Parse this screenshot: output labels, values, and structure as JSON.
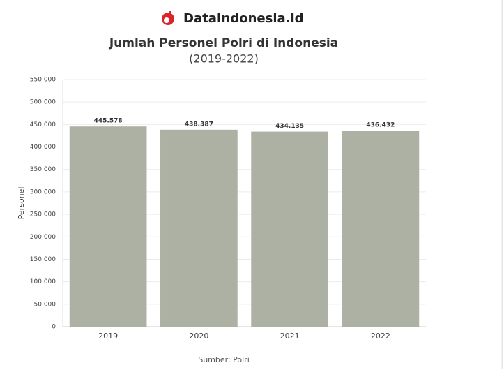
{
  "brand": "DataIndonesia.id",
  "chart_data": {
    "type": "bar",
    "title": "Jumlah Personel Polri di Indonesia",
    "subtitle": "(2019-2022)",
    "y_label": "Personel",
    "source": "Sumber: Polri",
    "categories": [
      "2019",
      "2020",
      "2021",
      "2022"
    ],
    "values": [
      445578,
      438387,
      434135,
      436432
    ],
    "value_labels": [
      "445.578",
      "438.387",
      "434.135",
      "436.432"
    ],
    "color": "#adb1a4",
    "ylim": [
      0,
      550000
    ],
    "yticks": [
      0,
      {
        "value": 50000,
        "label": "50.000"
      },
      {
        "value": 100000,
        "label": "100.000"
      },
      {
        "value": 150000,
        "label": "150.000"
      },
      {
        "value": 200000,
        "label": "200.000"
      },
      {
        "value": 250000,
        "label": "250.000"
      },
      {
        "value": 300000,
        "label": "300.000"
      },
      {
        "value": 350000,
        "label": "350.000"
      },
      {
        "value": 400000,
        "label": "400.000"
      },
      {
        "value": 450000,
        "label": "450.000"
      },
      {
        "value": 500000,
        "label": "500.000"
      },
      {
        "value": 550000,
        "label": "550.000"
      }
    ],
    "grid": true
  }
}
